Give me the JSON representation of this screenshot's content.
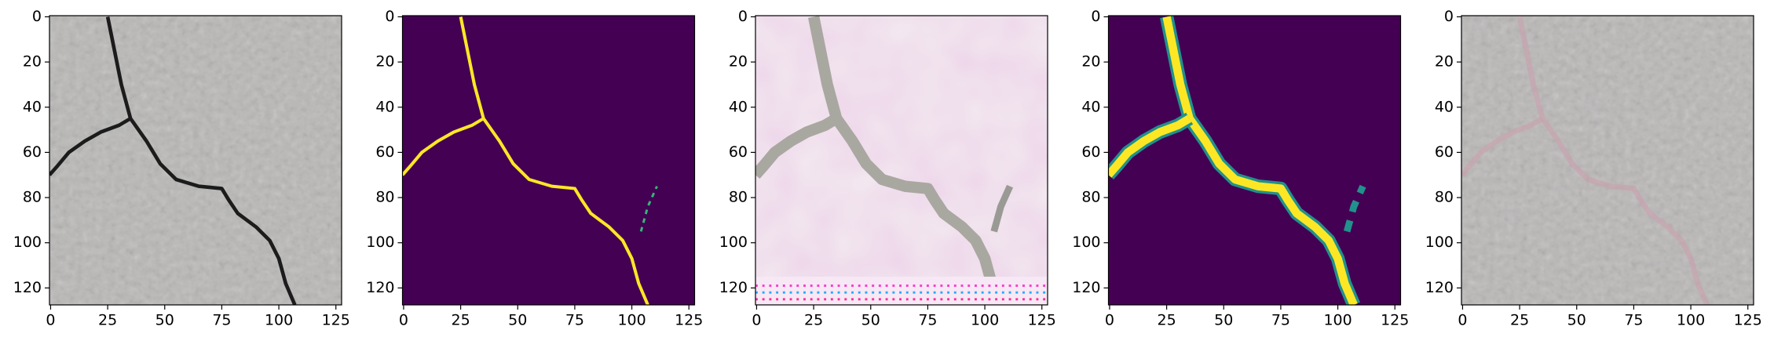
{
  "chart_data": [
    {
      "type": "image",
      "xlim": [
        -0.5,
        127.5
      ],
      "ylim": [
        127.5,
        -0.5
      ],
      "xticks": [
        0,
        25,
        50,
        75,
        100,
        125
      ],
      "yticks": [
        0,
        20,
        40,
        60,
        80,
        100,
        120
      ]
    },
    {
      "type": "image",
      "xlim": [
        -0.5,
        127.5
      ],
      "ylim": [
        127.5,
        -0.5
      ],
      "xticks": [
        0,
        25,
        50,
        75,
        100,
        125
      ],
      "yticks": [
        0,
        20,
        40,
        60,
        80,
        100,
        120
      ]
    },
    {
      "type": "image",
      "xlim": [
        -0.5,
        127.5
      ],
      "ylim": [
        127.5,
        -0.5
      ],
      "xticks": [
        0,
        25,
        50,
        75,
        100,
        125
      ],
      "yticks": [
        0,
        20,
        40,
        60,
        80,
        100,
        120
      ]
    },
    {
      "type": "image",
      "xlim": [
        -0.5,
        127.5
      ],
      "ylim": [
        127.5,
        -0.5
      ],
      "xticks": [
        0,
        25,
        50,
        75,
        100,
        125
      ],
      "yticks": [
        0,
        20,
        40,
        60,
        80,
        100,
        120
      ]
    },
    {
      "type": "image",
      "xlim": [
        -0.5,
        127.5
      ],
      "ylim": [
        127.5,
        -0.5
      ],
      "xticks": [
        0,
        25,
        50,
        75,
        100,
        125
      ],
      "yticks": [
        0,
        20,
        40,
        60,
        80,
        100,
        120
      ]
    }
  ]
}
